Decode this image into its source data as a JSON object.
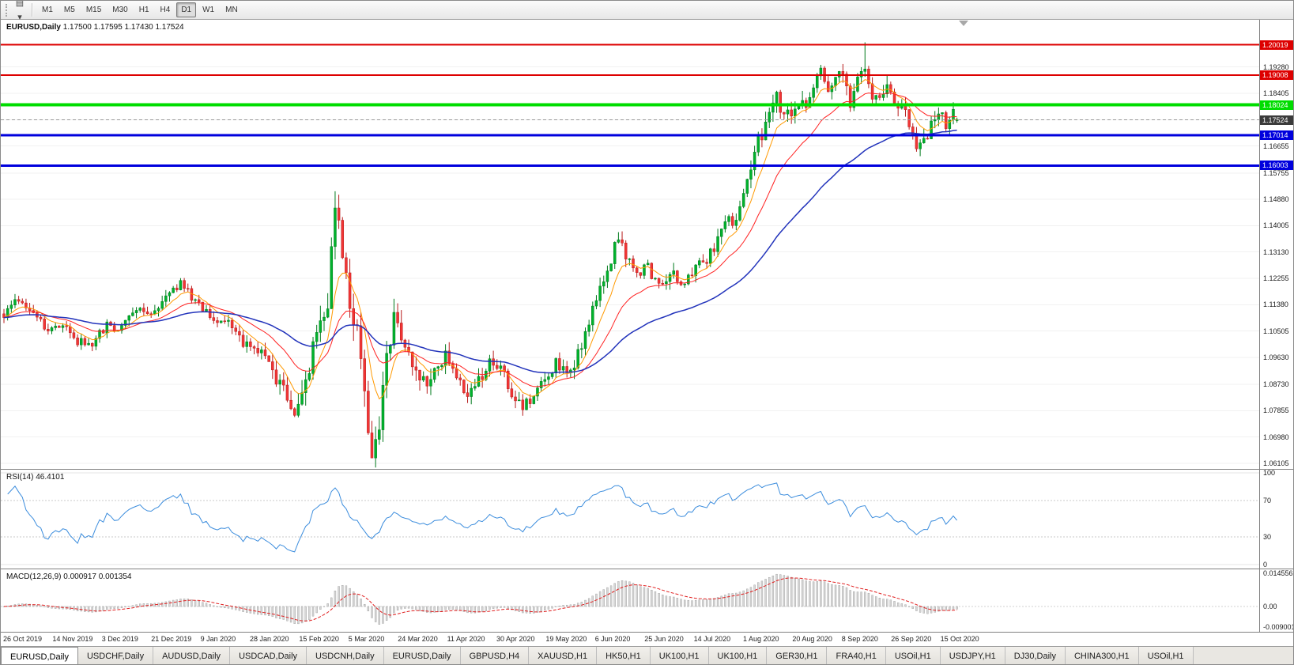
{
  "toolbar": {
    "left_icons": [
      {
        "name": "chart-window-icon",
        "glyph": "▤"
      },
      {
        "name": "dropdown-caret-icon",
        "glyph": "▾"
      }
    ],
    "timeframes": [
      {
        "label": "M1",
        "active": false
      },
      {
        "label": "M5",
        "active": false
      },
      {
        "label": "M15",
        "active": false
      },
      {
        "label": "M30",
        "active": false
      },
      {
        "label": "H1",
        "active": false
      },
      {
        "label": "H4",
        "active": false
      },
      {
        "label": "D1",
        "active": true
      },
      {
        "label": "W1",
        "active": false
      },
      {
        "label": "MN",
        "active": false
      }
    ]
  },
  "chart": {
    "title": "EURUSD,Daily",
    "ohlc_text": "1.17500 1.17595 1.17430 1.17524"
  },
  "rsi_panel": {
    "label": "RSI(14)",
    "value": "46.4101"
  },
  "macd_panel": {
    "label": "MACD(12,26,9)",
    "values": "0.000917 0.001354"
  },
  "tabs": [
    {
      "label": "EURUSD,Daily",
      "active": true
    },
    {
      "label": "USDCHF,Daily",
      "active": false
    },
    {
      "label": "AUDUSD,Daily",
      "active": false
    },
    {
      "label": "USDCAD,Daily",
      "active": false
    },
    {
      "label": "USDCNH,Daily",
      "active": false
    },
    {
      "label": "EURUSD,Daily",
      "active": false
    },
    {
      "label": "GBPUSD,H4",
      "active": false
    },
    {
      "label": "XAUUSD,H1",
      "active": false
    },
    {
      "label": "HK50,H1",
      "active": false
    },
    {
      "label": "UK100,H1",
      "active": false
    },
    {
      "label": "UK100,H1",
      "active": false
    },
    {
      "label": "GER30,H1",
      "active": false
    },
    {
      "label": "FRA40,H1",
      "active": false
    },
    {
      "label": "USOil,H1",
      "active": false
    },
    {
      "label": "USDJPY,H1",
      "active": false
    },
    {
      "label": "DJ30,Daily",
      "active": false
    },
    {
      "label": "CHINA300,H1",
      "active": false
    },
    {
      "label": "USOil,H1",
      "active": false
    }
  ],
  "chart_data": {
    "type": "candlestick",
    "symbol": "EURUSD",
    "timeframe": "Daily",
    "current": {
      "open": 1.175,
      "high": 1.17595,
      "low": 1.1743,
      "close": 1.17524
    },
    "price_scale": {
      "top": 1.2085,
      "bottom": 1.0592
    },
    "candle_count": 260,
    "candle_up_color": "#00b22c",
    "candle_up_stroke": "#007a1c",
    "candle_down_color": "#f23535",
    "candle_down_stroke": "#b71c1c",
    "close_path_anchors": [
      [
        0,
        1.1095
      ],
      [
        4,
        1.116
      ],
      [
        8,
        1.112
      ],
      [
        12,
        1.104
      ],
      [
        16,
        1.1072
      ],
      [
        20,
        1.1015
      ],
      [
        24,
        1.1008
      ],
      [
        28,
        1.107
      ],
      [
        32,
        1.1058
      ],
      [
        36,
        1.113
      ],
      [
        40,
        1.1092
      ],
      [
        44,
        1.117
      ],
      [
        48,
        1.1212
      ],
      [
        52,
        1.1152
      ],
      [
        56,
        1.1098
      ],
      [
        60,
        1.1088
      ],
      [
        64,
        1.1022
      ],
      [
        68,
        1.1
      ],
      [
        72,
        1.0945
      ],
      [
        76,
        1.0845
      ],
      [
        79,
        1.0792
      ],
      [
        82,
        1.0885
      ],
      [
        85,
        1.1035
      ],
      [
        88,
        1.114
      ],
      [
        90,
        1.1445
      ],
      [
        92,
        1.133
      ],
      [
        94,
        1.114
      ],
      [
        96,
        1.1055
      ],
      [
        98,
        1.0855
      ],
      [
        100,
        1.0655
      ],
      [
        102,
        1.0722
      ],
      [
        104,
        1.0965
      ],
      [
        106,
        1.1105
      ],
      [
        108,
        1.1012
      ],
      [
        111,
        1.0932
      ],
      [
        114,
        1.088
      ],
      [
        117,
        1.0922
      ],
      [
        120,
        1.0968
      ],
      [
        123,
        1.0892
      ],
      [
        126,
        1.0838
      ],
      [
        129,
        1.0882
      ],
      [
        132,
        1.0952
      ],
      [
        135,
        1.0938
      ],
      [
        138,
        1.0848
      ],
      [
        141,
        1.08
      ],
      [
        144,
        1.0826
      ],
      [
        147,
        1.0888
      ],
      [
        150,
        1.0938
      ],
      [
        153,
        1.0898
      ],
      [
        156,
        1.0968
      ],
      [
        159,
        1.1078
      ],
      [
        162,
        1.1192
      ],
      [
        165,
        1.1292
      ],
      [
        167,
        1.1368
      ],
      [
        169,
        1.1298
      ],
      [
        172,
        1.1242
      ],
      [
        175,
        1.1258
      ],
      [
        178,
        1.1208
      ],
      [
        181,
        1.1248
      ],
      [
        184,
        1.1202
      ],
      [
        187,
        1.1248
      ],
      [
        190,
        1.1278
      ],
      [
        193,
        1.1322
      ],
      [
        196,
        1.1398
      ],
      [
        199,
        1.1432
      ],
      [
        202,
        1.1552
      ],
      [
        205,
        1.1682
      ],
      [
        208,
        1.1762
      ],
      [
        210,
        1.1838
      ],
      [
        212,
        1.1758
      ],
      [
        214,
        1.1788
      ],
      [
        216,
        1.1818
      ],
      [
        218,
        1.1782
      ],
      [
        220,
        1.1872
      ],
      [
        222,
        1.1932
      ],
      [
        224,
        1.1832
      ],
      [
        226,
        1.1882
      ],
      [
        228,
        1.1902
      ],
      [
        230,
        1.1802
      ],
      [
        232,
        1.1908
      ],
      [
        234,
        1.1938
      ],
      [
        236,
        1.1802
      ],
      [
        238,
        1.1848
      ],
      [
        240,
        1.1868
      ],
      [
        242,
        1.1792
      ],
      [
        244,
        1.1812
      ],
      [
        246,
        1.1722
      ],
      [
        248,
        1.1642
      ],
      [
        250,
        1.1682
      ],
      [
        252,
        1.1732
      ],
      [
        254,
        1.1782
      ],
      [
        256,
        1.1738
      ],
      [
        258,
        1.1772
      ],
      [
        259,
        1.17524
      ]
    ],
    "volatility_anchors": [
      [
        0,
        0.0035
      ],
      [
        60,
        0.0038
      ],
      [
        80,
        0.0075
      ],
      [
        90,
        0.0105
      ],
      [
        100,
        0.0115
      ],
      [
        108,
        0.0095
      ],
      [
        118,
        0.006
      ],
      [
        140,
        0.0048
      ],
      [
        158,
        0.0058
      ],
      [
        170,
        0.0052
      ],
      [
        190,
        0.0048
      ],
      [
        204,
        0.0066
      ],
      [
        214,
        0.0058
      ],
      [
        226,
        0.0062
      ],
      [
        240,
        0.0058
      ],
      [
        250,
        0.0062
      ],
      [
        259,
        0.0045
      ]
    ],
    "extremes": [
      {
        "i": 90,
        "h": 1.1495
      },
      {
        "i": 100,
        "l": 1.0636
      },
      {
        "i": 234,
        "h": 1.201
      }
    ],
    "moving_averages": [
      {
        "period": 8,
        "color": "#ff9900",
        "width": 1
      },
      {
        "period": 21,
        "color": "#ff2222",
        "width": 1
      },
      {
        "period": 55,
        "color": "#2233bb",
        "width": 1.5
      }
    ],
    "levels": [
      {
        "price": 1.20019,
        "label": "1.20019",
        "color": "#dd0000",
        "width": 2
      },
      {
        "price": 1.19008,
        "label": "1.19008",
        "color": "#dd0000",
        "width": 2
      },
      {
        "price": 1.18024,
        "label": "1.18024",
        "color": "#00dd00",
        "width": 4
      },
      {
        "price": 1.17014,
        "label": "1.17014",
        "color": "#0000dd",
        "width": 3
      },
      {
        "price": 1.16003,
        "label": "1.16003",
        "color": "#0000dd",
        "width": 3
      }
    ],
    "current_price_label": {
      "price": 1.17524,
      "label": "1.17524",
      "bg": "#3b3b3b"
    },
    "price_ticks": [
      "1.19280",
      "1.18405",
      "1.17530",
      "1.16655",
      "1.15755",
      "1.14880",
      "1.14005",
      "1.13130",
      "1.12255",
      "1.11380",
      "1.10505",
      "1.09630",
      "1.08730",
      "1.07855",
      "1.06980",
      "1.06105"
    ],
    "date_ticks": [
      "26 Oct 2019",
      "14 Nov 2019",
      "3 Dec 2019",
      "21 Dec 2019",
      "9 Jan 2020",
      "28 Jan 2020",
      "15 Feb 2020",
      "5 Mar 2020",
      "24 Mar 2020",
      "11 Apr 2020",
      "30 Apr 2020",
      "19 May 2020",
      "6 Jun 2020",
      "25 Jun 2020",
      "14 Jul 2020",
      "1 Aug 2020",
      "20 Aug 2020",
      "8 Sep 2020",
      "26 Sep 2020",
      "15 Oct 2020"
    ],
    "rsi": {
      "period": 14,
      "current": 46.4101,
      "dashed_levels": [
        70,
        30
      ],
      "axis_ticks": [
        "100",
        "70",
        "30",
        "0"
      ],
      "color": "#3c8ddd"
    },
    "macd": {
      "fast": 12,
      "slow": 26,
      "signal": 9,
      "current_macd": 0.000917,
      "current_signal": 0.001354,
      "axis_max": 0.014556,
      "axis_min": -0.009001,
      "axis_ticks": [
        "0.014556",
        "0.00",
        "-0.009001"
      ],
      "hist_fill": "#d6d6d6",
      "hist_stroke": "#9a9a9a",
      "signal_color": "#e02020"
    }
  }
}
